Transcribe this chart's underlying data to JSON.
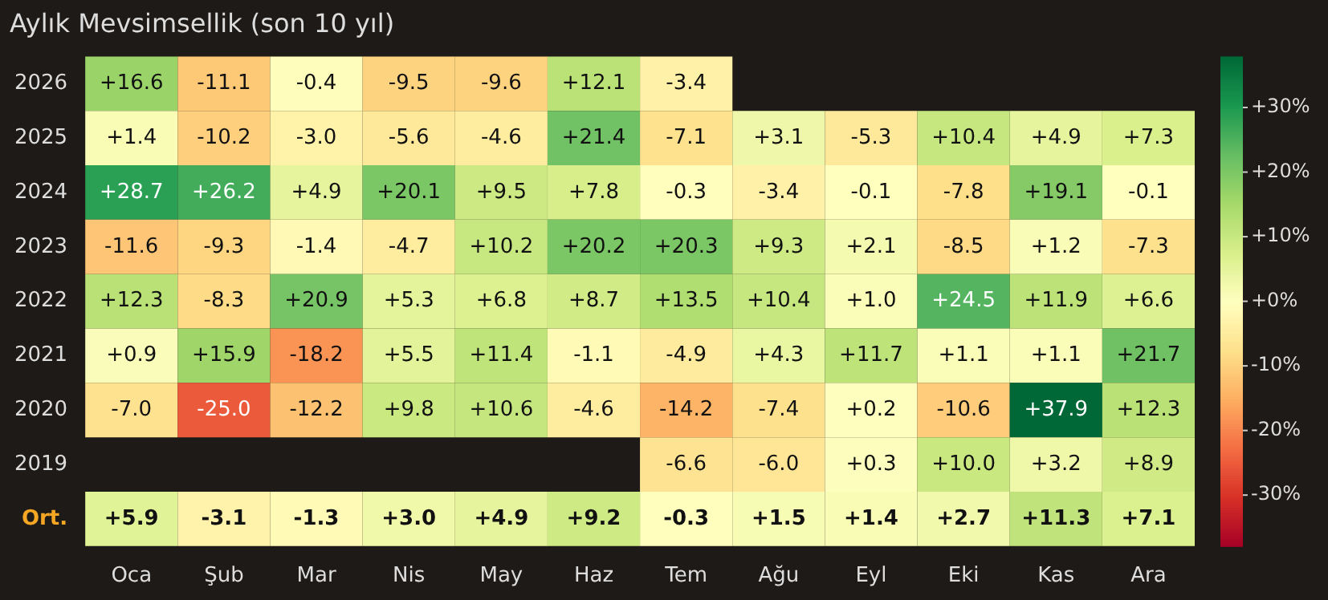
{
  "chart_data": {
    "type": "heatmap",
    "title": "Aylık Mevsimsellik (son 10 yıl)",
    "categories": [
      "Oca",
      "Şub",
      "Mar",
      "Nis",
      "May",
      "Haz",
      "Tem",
      "Ağu",
      "Eyl",
      "Eki",
      "Kas",
      "Ara"
    ],
    "y_categories": [
      "2026",
      "2025",
      "2024",
      "2023",
      "2022",
      "2021",
      "2020",
      "2019",
      "Ort."
    ],
    "cells": [
      [
        16.6,
        -11.1,
        -0.4,
        -9.5,
        -9.6,
        12.1,
        -3.4,
        null,
        null,
        null,
        null,
        null
      ],
      [
        1.4,
        -10.2,
        -3.0,
        -5.6,
        -4.6,
        21.4,
        -7.1,
        3.1,
        -5.3,
        10.4,
        4.9,
        7.3
      ],
      [
        28.7,
        26.2,
        4.9,
        20.1,
        9.5,
        7.8,
        -0.3,
        -3.4,
        -0.1,
        -7.8,
        19.1,
        -0.1
      ],
      [
        -11.6,
        -9.3,
        -1.4,
        -4.7,
        10.2,
        20.2,
        20.3,
        9.3,
        2.1,
        -8.5,
        1.2,
        -7.3
      ],
      [
        12.3,
        -8.3,
        20.9,
        5.3,
        6.8,
        8.7,
        13.5,
        10.4,
        1.0,
        24.5,
        11.9,
        6.6
      ],
      [
        0.9,
        15.9,
        -18.2,
        5.5,
        11.4,
        -1.1,
        -4.9,
        4.3,
        11.7,
        1.1,
        1.1,
        21.7
      ],
      [
        -7.0,
        -25.0,
        -12.2,
        9.8,
        10.6,
        -4.6,
        -14.2,
        -7.4,
        0.2,
        -10.6,
        37.9,
        12.3
      ],
      [
        null,
        null,
        null,
        null,
        null,
        null,
        -6.6,
        -6.0,
        0.3,
        10.0,
        3.2,
        8.9
      ],
      [
        5.9,
        -3.1,
        -1.3,
        3.0,
        4.9,
        9.2,
        -0.3,
        1.5,
        1.4,
        2.7,
        11.3,
        7.1
      ]
    ],
    "cell_labels": [
      [
        "+16.6",
        "-11.1",
        "-0.4",
        "-9.5",
        "-9.6",
        "+12.1",
        "-3.4",
        null,
        null,
        null,
        null,
        null
      ],
      [
        "+1.4",
        "-10.2",
        "-3.0",
        "-5.6",
        "-4.6",
        "+21.4",
        "-7.1",
        "+3.1",
        "-5.3",
        "+10.4",
        "+4.9",
        "+7.3"
      ],
      [
        "+28.7",
        "+26.2",
        "+4.9",
        "+20.1",
        "+9.5",
        "+7.8",
        "-0.3",
        "-3.4",
        "-0.1",
        "-7.8",
        "+19.1",
        "-0.1"
      ],
      [
        "-11.6",
        "-9.3",
        "-1.4",
        "-4.7",
        "+10.2",
        "+20.2",
        "+20.3",
        "+9.3",
        "+2.1",
        "-8.5",
        "+1.2",
        "-7.3"
      ],
      [
        "+12.3",
        "-8.3",
        "+20.9",
        "+5.3",
        "+6.8",
        "+8.7",
        "+13.5",
        "+10.4",
        "+1.0",
        "+24.5",
        "+11.9",
        "+6.6"
      ],
      [
        "+0.9",
        "+15.9",
        "-18.2",
        "+5.5",
        "+11.4",
        "-1.1",
        "-4.9",
        "+4.3",
        "+11.7",
        "+1.1",
        "+1.1",
        "+21.7"
      ],
      [
        "-7.0",
        "-25.0",
        "-12.2",
        "+9.8",
        "+10.6",
        "-4.6",
        "-14.2",
        "-7.4",
        "+0.2",
        "-10.6",
        "+37.9",
        "+12.3"
      ],
      [
        null,
        null,
        null,
        null,
        null,
        null,
        "-6.6",
        "-6.0",
        "+0.3",
        "+10.0",
        "+3.2",
        "+8.9"
      ],
      [
        "+5.9",
        "-3.1",
        "-1.3",
        "+3.0",
        "+4.9",
        "+9.2",
        "-0.3",
        "+1.5",
        "+1.4",
        "+2.7",
        "+11.3",
        "+7.1"
      ]
    ],
    "clim": [
      -37.9,
      37.9
    ],
    "cticks": [
      {
        "value": 30,
        "label": "+30%"
      },
      {
        "value": 20,
        "label": "+20%"
      },
      {
        "value": 10,
        "label": "+10%"
      },
      {
        "value": 0,
        "label": "+0%"
      },
      {
        "value": -10,
        "label": "-10%"
      },
      {
        "value": -20,
        "label": "-20%"
      },
      {
        "value": -30,
        "label": "-30%"
      }
    ]
  }
}
